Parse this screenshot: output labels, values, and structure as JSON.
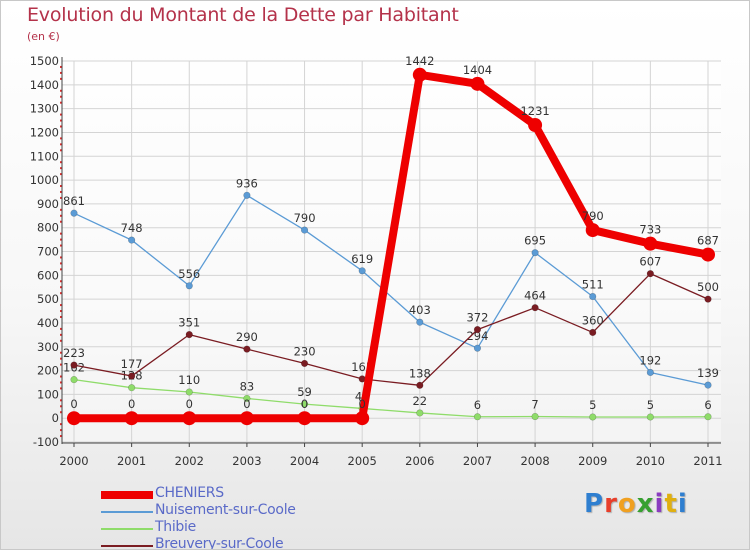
{
  "chart_data": {
    "type": "line",
    "title": "Evolution du Montant de la Dette par Habitant",
    "subtitle": "(en €)",
    "x": [
      "2000",
      "2001",
      "2002",
      "2003",
      "2004",
      "2005",
      "2006",
      "2007",
      "2008",
      "2009",
      "2010",
      "2011"
    ],
    "ylim": [
      -100,
      1500
    ],
    "yticks": [
      -100,
      0,
      100,
      200,
      300,
      400,
      500,
      600,
      700,
      800,
      900,
      1000,
      1100,
      1200,
      1300,
      1400,
      1500
    ],
    "grid": true,
    "legend_position": "bottom-left",
    "series": [
      {
        "name": "Nuisement-sur-Coole",
        "color": "#5b9bd5",
        "emphasis": false,
        "values": [
          861,
          748,
          556,
          936,
          790,
          619,
          403,
          294,
          695,
          511,
          192,
          139
        ]
      },
      {
        "name": "Thibie",
        "color": "#8fdc6a",
        "emphasis": false,
        "values": [
          162,
          128,
          110,
          83,
          59,
          41,
          22,
          6,
          7,
          5,
          5,
          6
        ]
      },
      {
        "name": "Breuvery-sur-Coole",
        "color": "#7a1c22",
        "emphasis": false,
        "values": [
          223,
          177,
          351,
          290,
          230,
          165,
          138,
          372,
          464,
          360,
          607,
          500
        ]
      },
      {
        "name": "CHENIERS",
        "color": "#ee0000",
        "emphasis": true,
        "values": [
          0,
          0,
          0,
          0,
          0,
          0,
          1442,
          1404,
          1231,
          790,
          733,
          687
        ]
      }
    ],
    "legend_order": [
      "CHENIERS",
      "Nuisement-sur-Coole",
      "Thibie",
      "Breuvery-sur-Coole"
    ]
  },
  "logo": {
    "letters": [
      "P",
      "r",
      "o",
      "x",
      "i",
      "t",
      "i"
    ]
  }
}
